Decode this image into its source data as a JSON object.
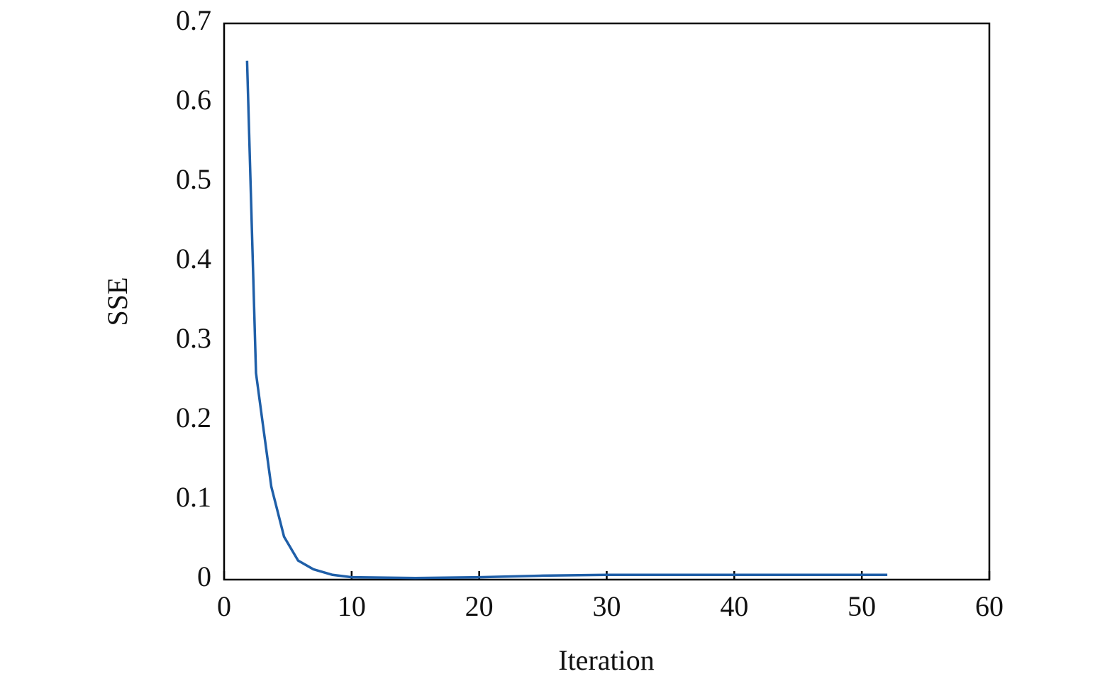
{
  "chart_data": {
    "type": "line",
    "x_label": "Iteration",
    "y_label": "SSE",
    "x": [
      1.8,
      2.5,
      3,
      3.7,
      4.7,
      5.8,
      7,
      8.5,
      10,
      15,
      20,
      25,
      30,
      40,
      52
    ],
    "series": [
      {
        "name": "SSE",
        "color": "#1f5fa8",
        "values": [
          0.653,
          0.26,
          0.2,
          0.117,
          0.054,
          0.024,
          0.013,
          0.006,
          0.003,
          0.002,
          0.003,
          0.005,
          0.006,
          0.006,
          0.006
        ]
      }
    ],
    "xlim": [
      0,
      60
    ],
    "ylim": [
      0,
      0.7
    ],
    "xticks": [
      0,
      10,
      20,
      30,
      40,
      50,
      60
    ],
    "yticks": [
      0,
      0.1,
      0.2,
      0.3,
      0.4,
      0.5,
      0.6,
      0.7
    ]
  }
}
